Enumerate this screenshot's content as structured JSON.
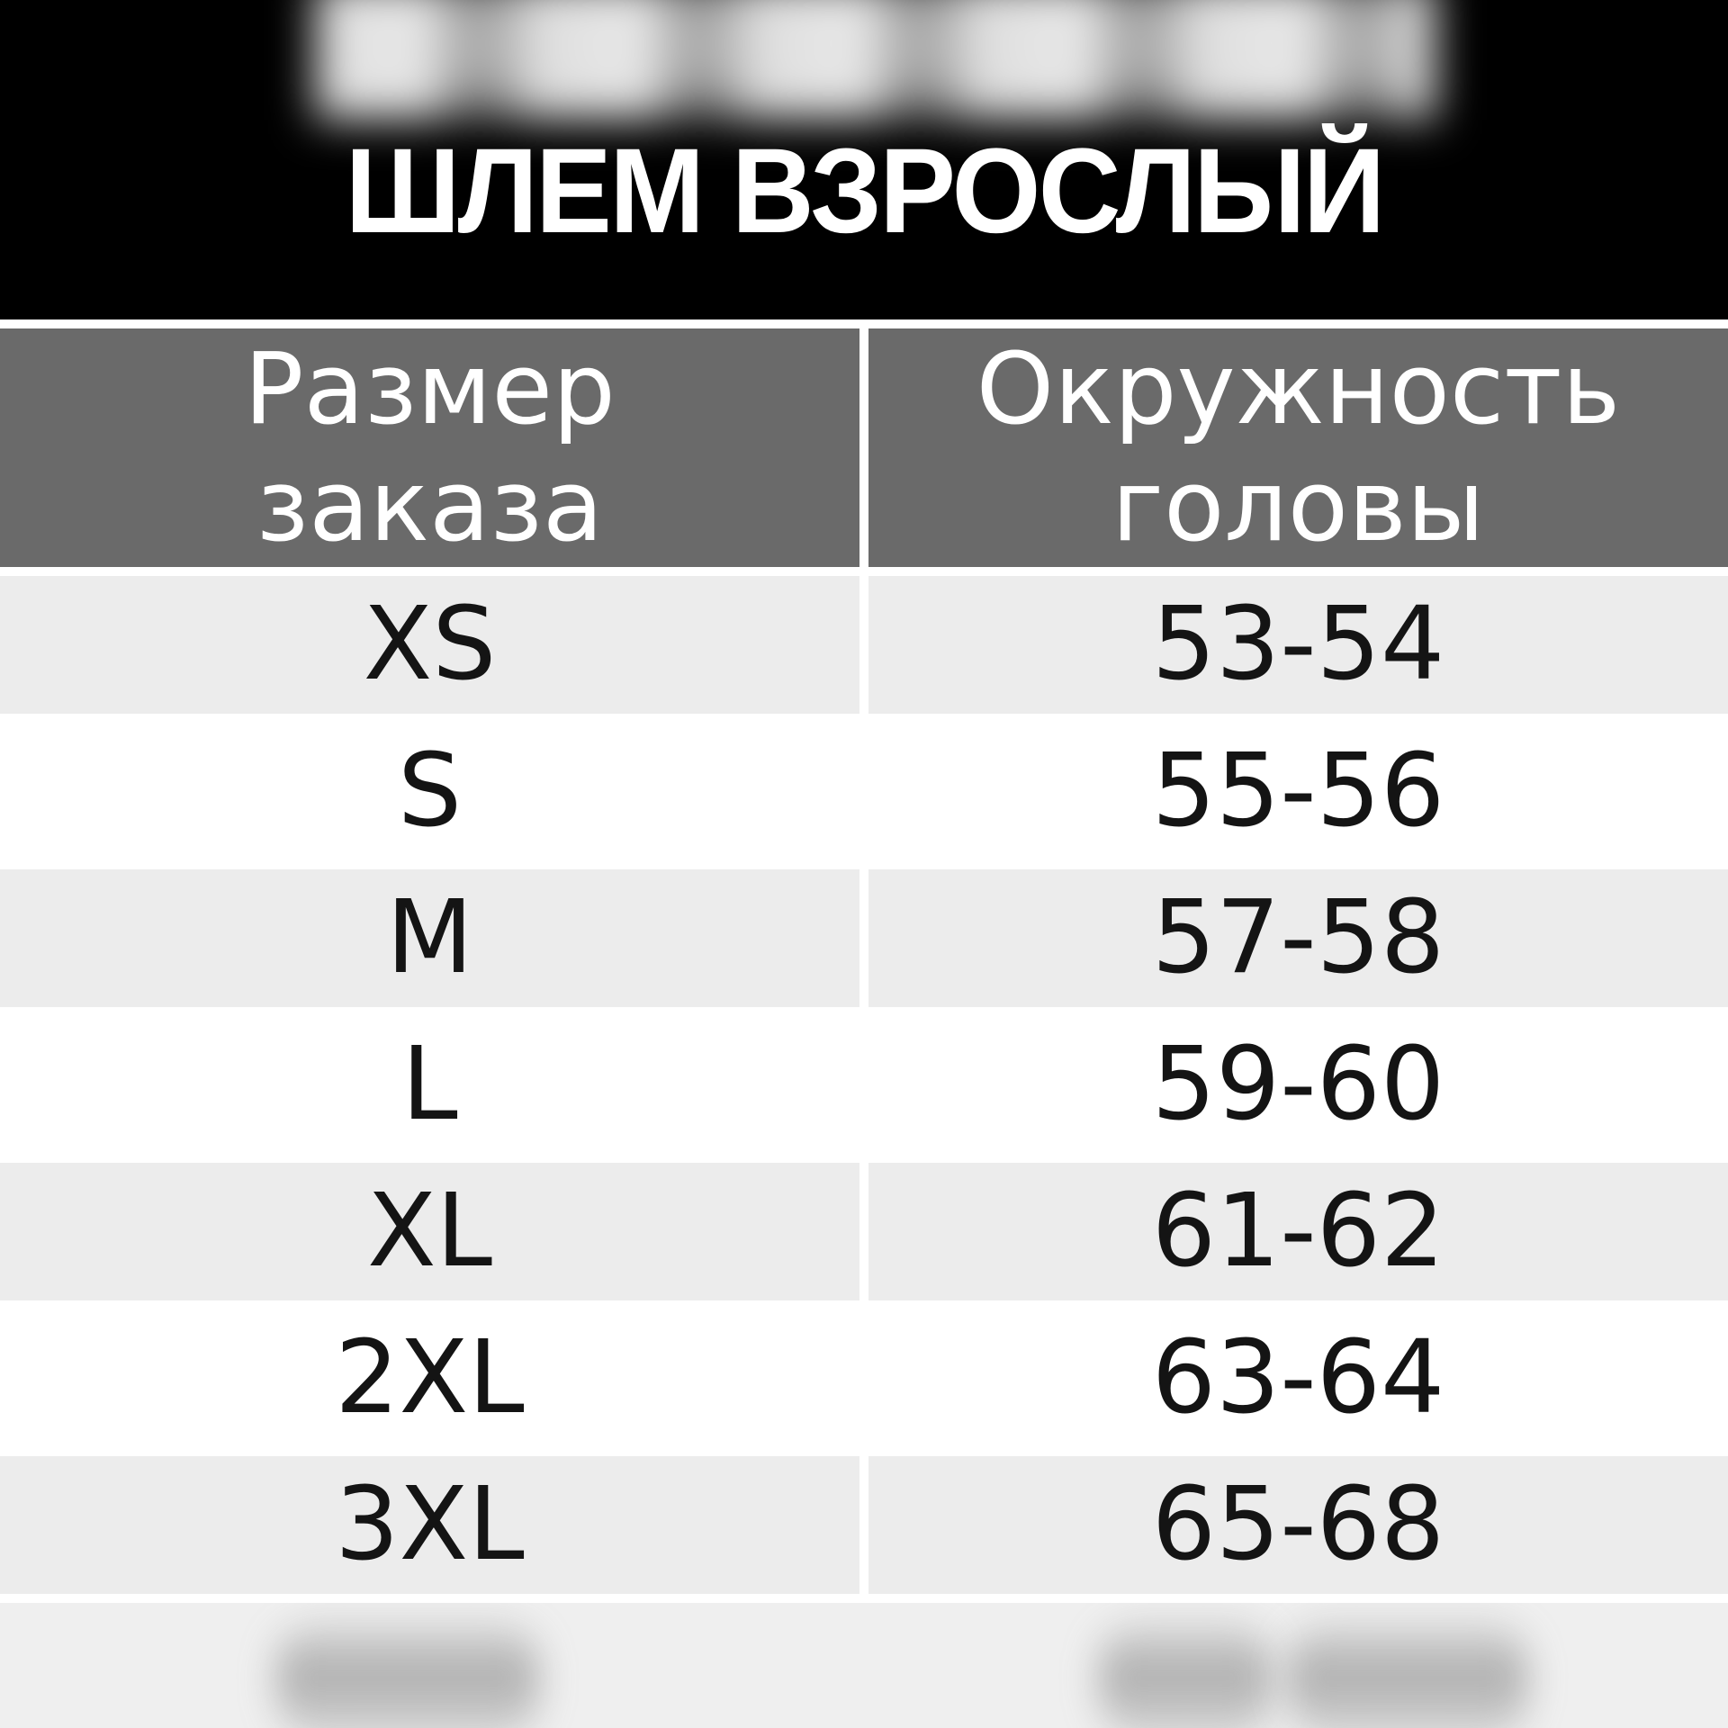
{
  "banner": {
    "title": "ШЛЕМ ВЗРОСЛЫЙ",
    "background_color": "#000000",
    "title_color": "#ffffff"
  },
  "table": {
    "header": {
      "columns": [
        "Размер заказа",
        "Окружность головы"
      ],
      "background_color": "#6a6a6a",
      "text_color": "#ffffff"
    },
    "rows": [
      {
        "size": "XS",
        "circumference": "53-54"
      },
      {
        "size": "S",
        "circumference": "55-56"
      },
      {
        "size": "M",
        "circumference": "57-58"
      },
      {
        "size": "L",
        "circumference": "59-60"
      },
      {
        "size": "XL",
        "circumference": "61-62"
      },
      {
        "size": "2XL",
        "circumference": "63-64"
      },
      {
        "size": "3XL",
        "circumference": "65-68"
      }
    ],
    "row_colors": {
      "odd": "#ececec",
      "even": "#ffffff",
      "text": "#141414"
    }
  },
  "footer": {
    "background_color": "#efefef"
  },
  "chart_data": {
    "type": "table",
    "title": "ШЛЕМ ВЗРОСЛЫЙ",
    "columns": [
      "Размер заказа",
      "Окружность головы"
    ],
    "rows": [
      [
        "XS",
        "53-54"
      ],
      [
        "S",
        "55-56"
      ],
      [
        "M",
        "57-58"
      ],
      [
        "L",
        "59-60"
      ],
      [
        "XL",
        "61-62"
      ],
      [
        "2XL",
        "63-64"
      ],
      [
        "3XL",
        "65-68"
      ]
    ]
  }
}
